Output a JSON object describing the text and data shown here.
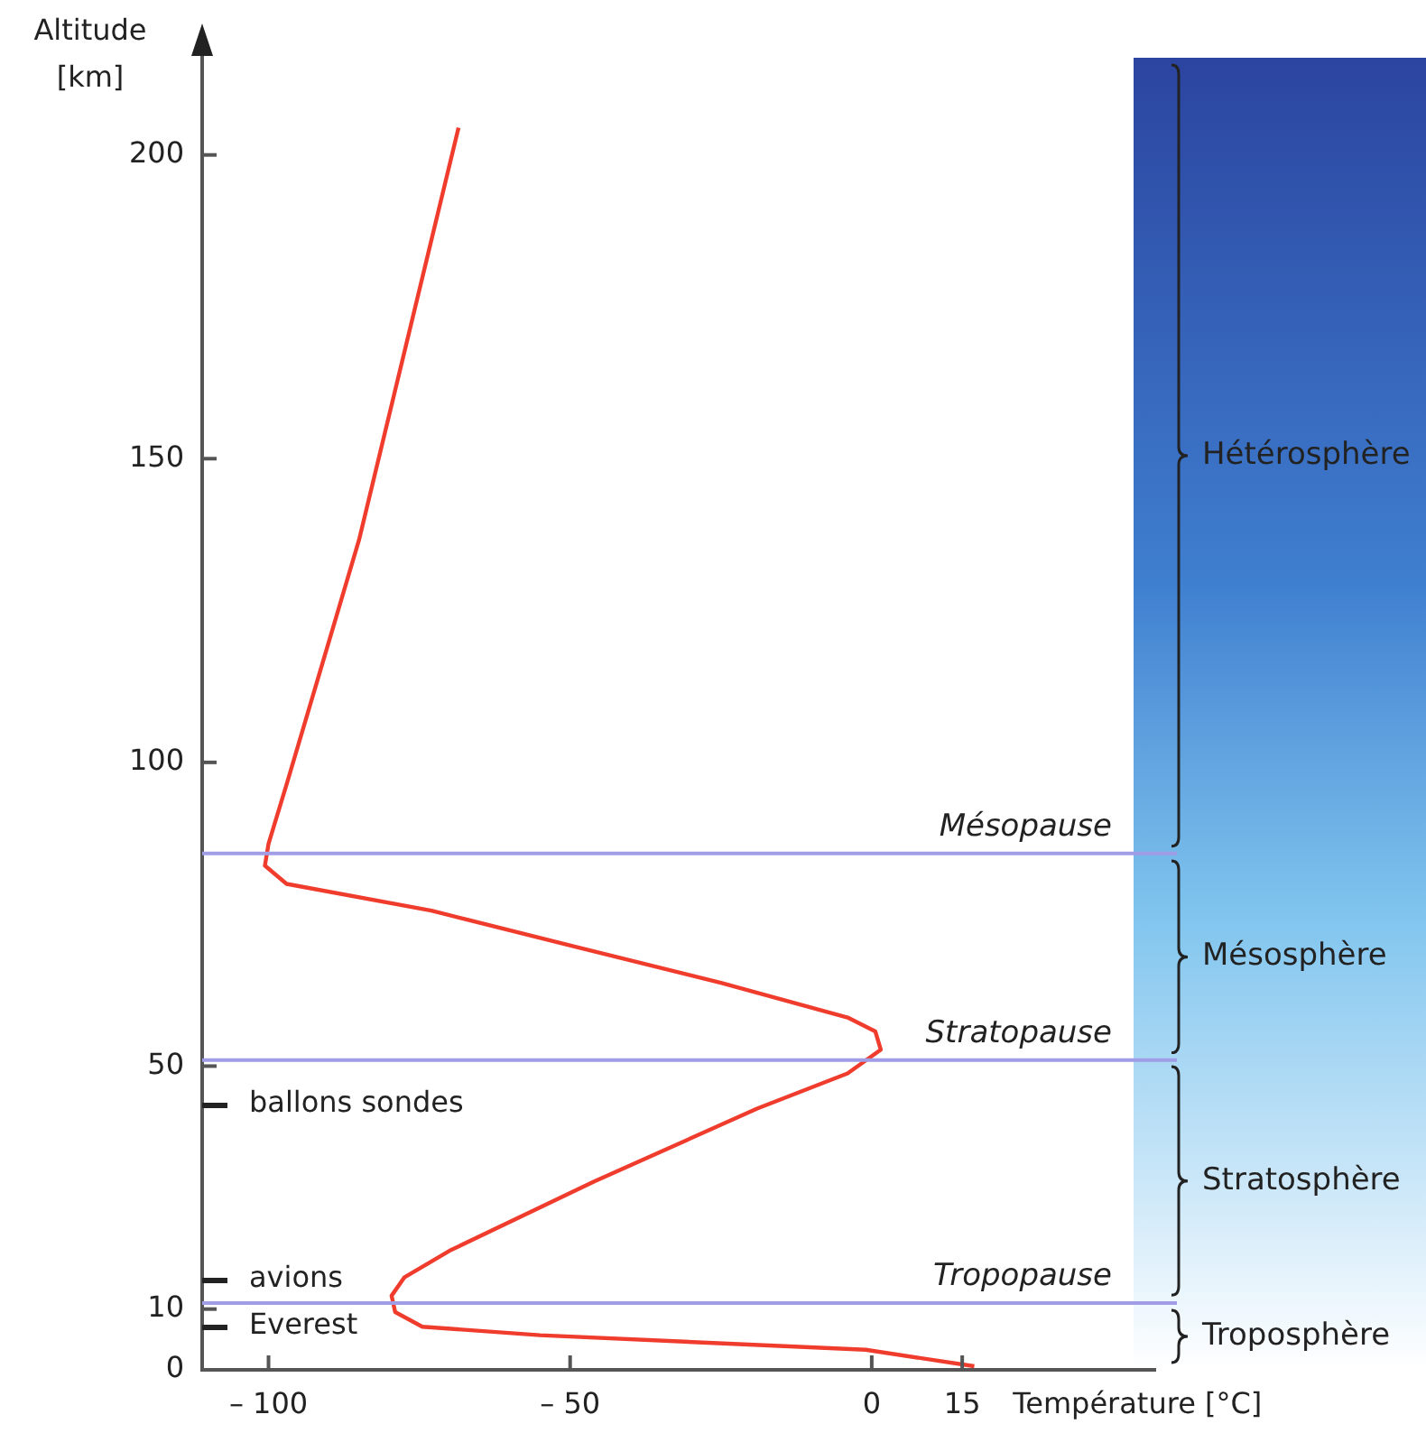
{
  "chart_data": {
    "type": "line",
    "xlabel": "Température [°C]",
    "ylabel": "Altitude\n[km]",
    "x": [
      17,
      -1,
      -55,
      -74.5,
      -79,
      -79.6,
      -77.5,
      -70,
      -46,
      -19,
      -4,
      1.5,
      0.6,
      -4,
      -25,
      -49,
      -73,
      -97,
      -100.6,
      -100,
      -97,
      -85,
      -68.5
    ],
    "values": [
      0.6,
      3.3,
      5.7,
      7.1,
      9.5,
      12.2,
      15.2,
      19.6,
      31,
      43,
      48.8,
      52.7,
      55.7,
      58,
      63.7,
      69.6,
      75.6,
      80,
      83,
      86.6,
      96.4,
      136.6,
      204.5
    ],
    "color": "#f03c2d",
    "xlim": [
      -111,
      47
    ],
    "xticks": [
      {
        "value": -100,
        "label": "– 100"
      },
      {
        "value": -50,
        "label": "– 50"
      },
      0,
      15
    ],
    "ylim": [
      0,
      216
    ],
    "yticks": [
      0,
      10,
      50,
      100,
      150,
      200
    ],
    "grid": false,
    "legend": false,
    "marker": "none",
    "line_style": "solid",
    "ref_lines": [
      {
        "axis": "y",
        "value": 85,
        "label": "Mésopause",
        "color": "#a09ce6"
      },
      {
        "axis": "y",
        "value": 51,
        "label": "Stratopause",
        "color": "#a09ce6"
      },
      {
        "axis": "y",
        "value": 11,
        "label": "Tropopause",
        "color": "#a09ce6"
      }
    ],
    "annotations": [
      "ballons sondes",
      "avions",
      "Everest",
      "Troposphère",
      "Stratosphère",
      "Mésosphère",
      "Hétérosphère"
    ]
  }
}
